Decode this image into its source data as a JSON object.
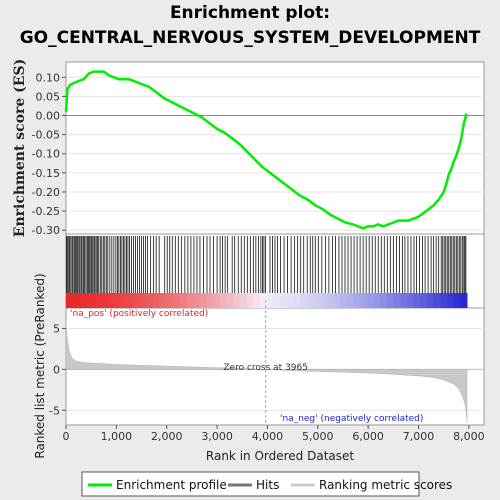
{
  "title_line1": "Enrichment plot:",
  "title_line2": "GO_CENTRAL_NERVOUS_SYSTEM_DEVELOPMENT",
  "chart_data": {
    "type": "line",
    "es_panel": {
      "ylabel": "Enrichment score (ES)",
      "ylim": [
        -0.31,
        0.14
      ],
      "yticks": [
        "0.10",
        "0.05",
        "0.00",
        "-0.05",
        "-0.10",
        "-0.15",
        "-0.20",
        "-0.25",
        "-0.30"
      ],
      "ytick_values": [
        0.1,
        0.05,
        0.0,
        -0.05,
        -0.1,
        -0.15,
        -0.2,
        -0.25,
        -0.3
      ],
      "series": [
        {
          "name": "Enrichment profile",
          "color": "#00ee00",
          "x": [
            0,
            30,
            80,
            150,
            250,
            350,
            450,
            550,
            650,
            750,
            850,
            950,
            1050,
            1150,
            1250,
            1350,
            1450,
            1550,
            1650,
            1750,
            1850,
            1950,
            2100,
            2250,
            2400,
            2550,
            2700,
            2850,
            3000,
            3150,
            3300,
            3450,
            3600,
            3750,
            3900,
            4050,
            4200,
            4350,
            4500,
            4650,
            4800,
            4950,
            5100,
            5250,
            5400,
            5550,
            5700,
            5800,
            5900,
            6000,
            6100,
            6200,
            6300,
            6400,
            6500,
            6600,
            6700,
            6800,
            6900,
            7000,
            7100,
            7200,
            7300,
            7400,
            7500,
            7550,
            7600,
            7650,
            7700,
            7750,
            7800,
            7850,
            7900,
            7950
          ],
          "y": [
            0.01,
            0.07,
            0.08,
            0.085,
            0.09,
            0.095,
            0.11,
            0.115,
            0.115,
            0.115,
            0.105,
            0.1,
            0.095,
            0.095,
            0.095,
            0.09,
            0.085,
            0.08,
            0.075,
            0.065,
            0.055,
            0.045,
            0.035,
            0.025,
            0.015,
            0.005,
            -0.005,
            -0.02,
            -0.035,
            -0.045,
            -0.06,
            -0.075,
            -0.095,
            -0.115,
            -0.135,
            -0.15,
            -0.165,
            -0.18,
            -0.195,
            -0.21,
            -0.22,
            -0.235,
            -0.245,
            -0.26,
            -0.27,
            -0.28,
            -0.285,
            -0.29,
            -0.295,
            -0.29,
            -0.29,
            -0.285,
            -0.29,
            -0.285,
            -0.28,
            -0.275,
            -0.275,
            -0.275,
            -0.27,
            -0.265,
            -0.255,
            -0.245,
            -0.235,
            -0.22,
            -0.2,
            -0.18,
            -0.155,
            -0.14,
            -0.12,
            -0.105,
            -0.085,
            -0.06,
            -0.02,
            0.005
          ]
        }
      ]
    },
    "hits_panel": {
      "name": "Hits",
      "hit_ranks": [
        10,
        25,
        45,
        70,
        95,
        120,
        140,
        165,
        185,
        205,
        230,
        255,
        275,
        300,
        320,
        345,
        370,
        395,
        420,
        440,
        460,
        480,
        505,
        530,
        555,
        575,
        600,
        625,
        650,
        680,
        710,
        740,
        770,
        800,
        830,
        870,
        910,
        950,
        990,
        1020,
        1050,
        1080,
        1110,
        1140,
        1170,
        1200,
        1230,
        1260,
        1300,
        1340,
        1380,
        1420,
        1460,
        1500,
        1540,
        1580,
        1620,
        1680,
        1740,
        1790,
        1850,
        1960,
        2010,
        2060,
        2110,
        2170,
        2230,
        2290,
        2360,
        2420,
        2480,
        2540,
        2600,
        2660,
        2730,
        2800,
        2860,
        2930,
        3000,
        3060,
        3110,
        3160,
        3210,
        3300,
        3350,
        3420,
        3480,
        3540,
        3600,
        3660,
        3720,
        3770,
        3820,
        3870,
        3900,
        3930,
        3960,
        4050,
        4100,
        4150,
        4200,
        4260,
        4330,
        4400,
        4470,
        4540,
        4600,
        4660,
        4720,
        4790,
        4850,
        4900,
        4950,
        5010,
        5080,
        5150,
        5220,
        5290,
        5350,
        5420,
        5480,
        5540,
        5600,
        5660,
        5720,
        5780,
        5840,
        5900,
        5960,
        6020,
        6080,
        6140,
        6200,
        6260,
        6320,
        6380,
        6440,
        6500,
        6560,
        6620,
        6680,
        6730,
        6790,
        6850,
        6910,
        6960,
        7020,
        7080,
        7130,
        7190,
        7250,
        7300,
        7350,
        7400,
        7450,
        7480,
        7510,
        7540,
        7570,
        7600,
        7630,
        7660,
        7690,
        7720,
        7750,
        7780,
        7810,
        7840,
        7870,
        7900,
        7920,
        7940
      ]
    },
    "ranked_panel": {
      "name": "Ranking metric scores",
      "ylabel": "Ranked list metric (PreRanked)",
      "xlabel": "Rank in Ordered Dataset",
      "ylim": [
        -6.8,
        7.5
      ],
      "yticks": [
        "5",
        "0",
        "-5"
      ],
      "ytick_values": [
        5,
        0,
        -5
      ],
      "xticks": [
        "0",
        "1,000",
        "2,000",
        "3,000",
        "4,000",
        "5,000",
        "6,000",
        "7,000",
        "8,000"
      ],
      "xtick_values": [
        0,
        1000,
        2000,
        3000,
        4000,
        5000,
        6000,
        7000,
        8000
      ],
      "xlim": [
        0,
        8300
      ],
      "x": [
        0,
        20,
        60,
        120,
        200,
        400,
        700,
        1000,
        1500,
        2000,
        2500,
        3000,
        3500,
        3965,
        4500,
        5000,
        5500,
        6000,
        6500,
        7000,
        7300,
        7500,
        7700,
        7800,
        7850,
        7900,
        7930,
        7950,
        7962
      ],
      "y": [
        6.0,
        4.0,
        2.3,
        1.4,
        1.0,
        0.8,
        0.7,
        0.6,
        0.5,
        0.4,
        0.3,
        0.2,
        0.1,
        0.0,
        -0.15,
        -0.25,
        -0.35,
        -0.45,
        -0.6,
        -0.8,
        -1.0,
        -1.3,
        -1.8,
        -2.4,
        -3.0,
        -3.8,
        -4.5,
        -5.5,
        -6.5
      ]
    },
    "annotations": {
      "pos_label": "'na_pos' (positively correlated)",
      "neg_label": "'na_neg' (negatively correlated)",
      "zero_cross": "Zero cross at 3965",
      "zero_cross_rank": 3965
    },
    "legend": {
      "items": [
        "Enrichment profile",
        "Hits",
        "Ranking metric scores"
      ],
      "placement": "bottom"
    }
  }
}
